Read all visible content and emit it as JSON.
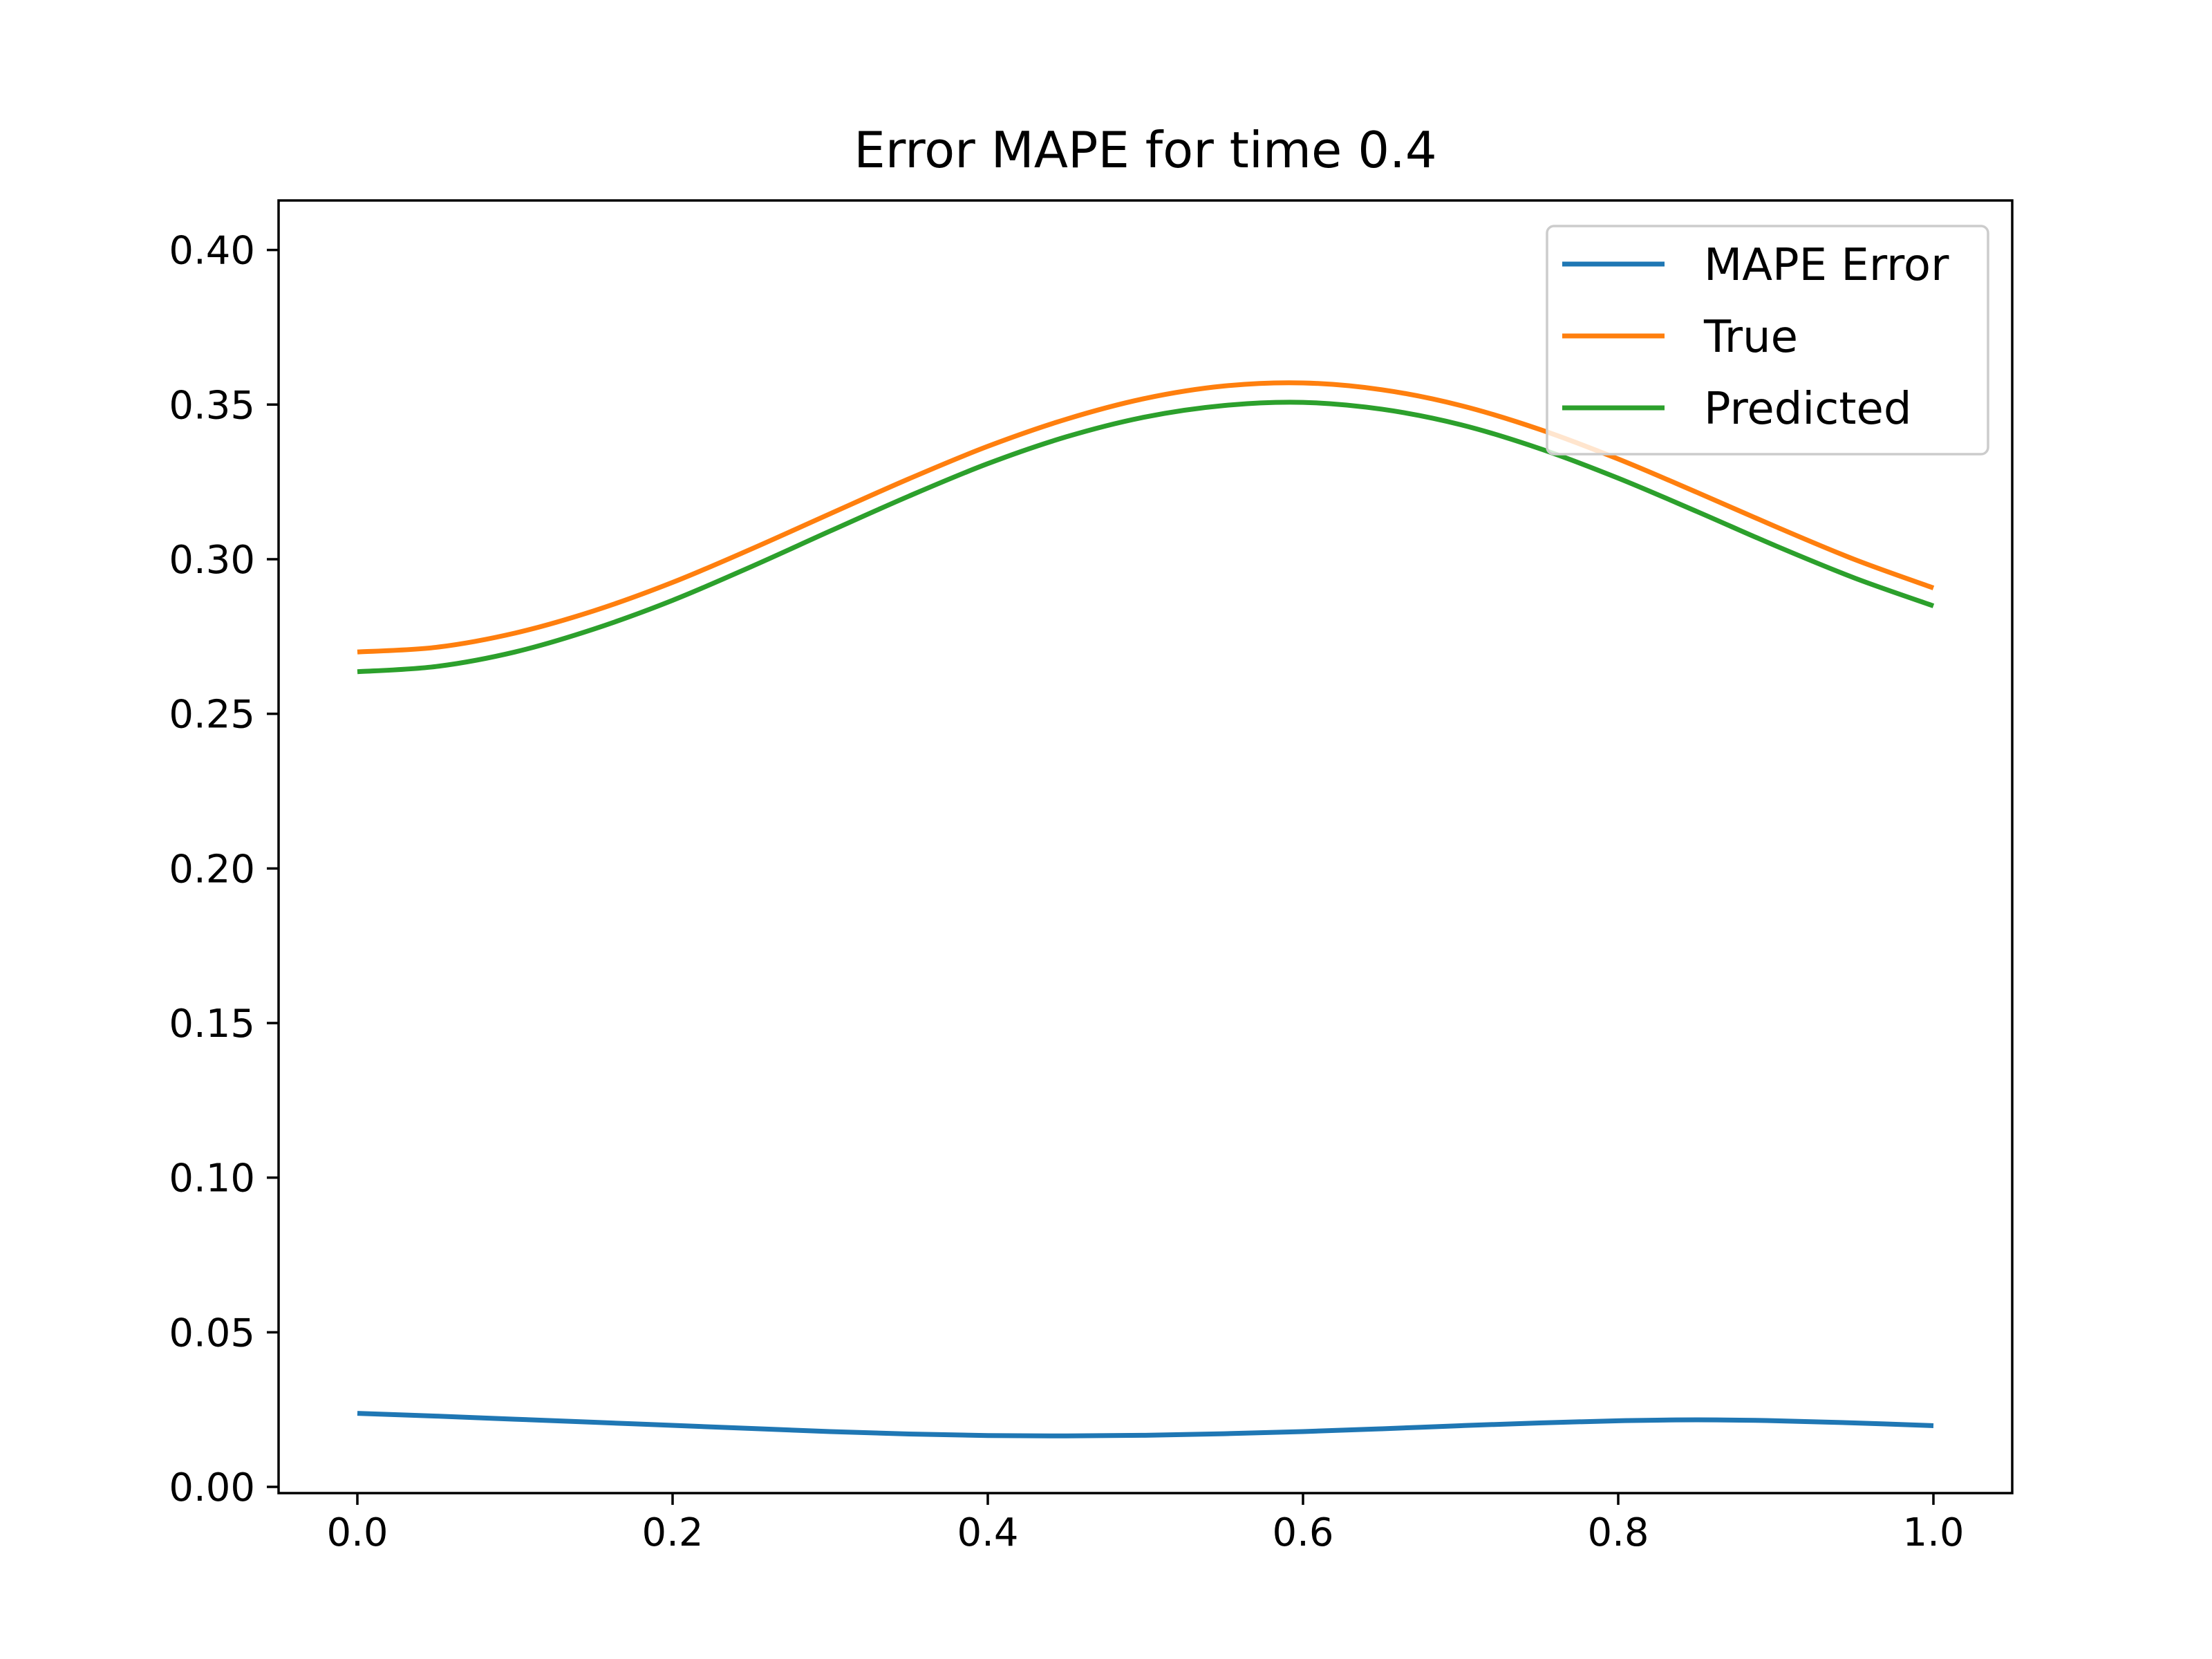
{
  "chart_data": {
    "type": "line",
    "title": "Error MAPE for time 0.4",
    "xlabel": "",
    "ylabel": "",
    "xlim": [
      -0.05,
      1.05
    ],
    "ylim": [
      -0.002,
      0.416
    ],
    "x_ticks": [
      0.0,
      0.2,
      0.4,
      0.6,
      0.8,
      1.0
    ],
    "x_tick_labels": [
      "0.0",
      "0.2",
      "0.4",
      "0.6",
      "0.8",
      "1.0"
    ],
    "y_ticks": [
      0.0,
      0.05,
      0.1,
      0.15,
      0.2,
      0.25,
      0.3,
      0.35,
      0.4
    ],
    "y_tick_labels": [
      "0.00",
      "0.05",
      "0.10",
      "0.15",
      "0.20",
      "0.25",
      "0.30",
      "0.35",
      "0.40"
    ],
    "grid": false,
    "legend_position": "top-right",
    "x": [
      0.0,
      0.05,
      0.1,
      0.15,
      0.2,
      0.25,
      0.3,
      0.35,
      0.4,
      0.45,
      0.5,
      0.55,
      0.6,
      0.65,
      0.7,
      0.75,
      0.8,
      0.85,
      0.9,
      0.95,
      1.0
    ],
    "series": [
      {
        "name": "MAPE Error",
        "color": "#1f77b4",
        "values": [
          0.0238,
          0.0229,
          0.0219,
          0.0209,
          0.0199,
          0.0189,
          0.0179,
          0.0171,
          0.0166,
          0.0165,
          0.0167,
          0.0172,
          0.0179,
          0.0188,
          0.0198,
          0.0207,
          0.0214,
          0.0217,
          0.0214,
          0.0207,
          0.0198
        ]
      },
      {
        "name": "True",
        "color": "#ff7f0e",
        "values": [
          0.27,
          0.2715,
          0.2761,
          0.2833,
          0.2925,
          0.3033,
          0.3147,
          0.326,
          0.3365,
          0.3453,
          0.352,
          0.356,
          0.357,
          0.3548,
          0.3497,
          0.342,
          0.3324,
          0.3216,
          0.3105,
          0.2999,
          0.2907
        ]
      },
      {
        "name": "Predicted",
        "color": "#2ca02c",
        "values": [
          0.2636,
          0.2653,
          0.27,
          0.2774,
          0.2867,
          0.2976,
          0.3091,
          0.3204,
          0.3309,
          0.3396,
          0.346,
          0.3497,
          0.3507,
          0.3485,
          0.3435,
          0.3358,
          0.3262,
          0.3154,
          0.3043,
          0.2939,
          0.2849
        ]
      }
    ]
  }
}
